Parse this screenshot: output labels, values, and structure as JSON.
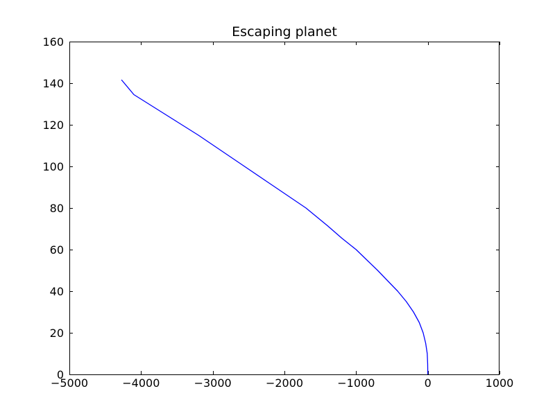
{
  "chart_data": {
    "type": "line",
    "title": "Escaping planet",
    "xlabel": "",
    "ylabel": "",
    "xlim": [
      -5000,
      1000
    ],
    "ylim": [
      0,
      160
    ],
    "x_ticks": [
      -5000,
      -4000,
      -3000,
      -2000,
      -1000,
      0,
      1000
    ],
    "y_ticks": [
      0,
      20,
      40,
      60,
      80,
      100,
      120,
      140,
      160
    ],
    "x_tick_labels": [
      "−5000",
      "−4000",
      "−3000",
      "−2000",
      "−1000",
      "0",
      "1000"
    ],
    "y_tick_labels": [
      "0",
      "20",
      "40",
      "60",
      "80",
      "100",
      "120",
      "140",
      "160"
    ],
    "grid": false,
    "series": [
      {
        "color": "#0000ff",
        "x": [
          0,
          -2,
          -8,
          -30,
          -65,
          -120,
          -200,
          -300,
          -420,
          -560,
          -700,
          -850,
          -1000,
          -1200,
          -1400,
          -1700,
          -2000,
          -2300,
          -2600,
          -2900,
          -3200,
          -3500,
          -3800,
          -4100,
          -4270
        ],
        "y": [
          0,
          5,
          10,
          15,
          20,
          25,
          30,
          35,
          40,
          45,
          50,
          55,
          60,
          65.5,
          71.5,
          80,
          87,
          94,
          101,
          108,
          115,
          121.5,
          128,
          134.5,
          141.5
        ]
      }
    ]
  }
}
